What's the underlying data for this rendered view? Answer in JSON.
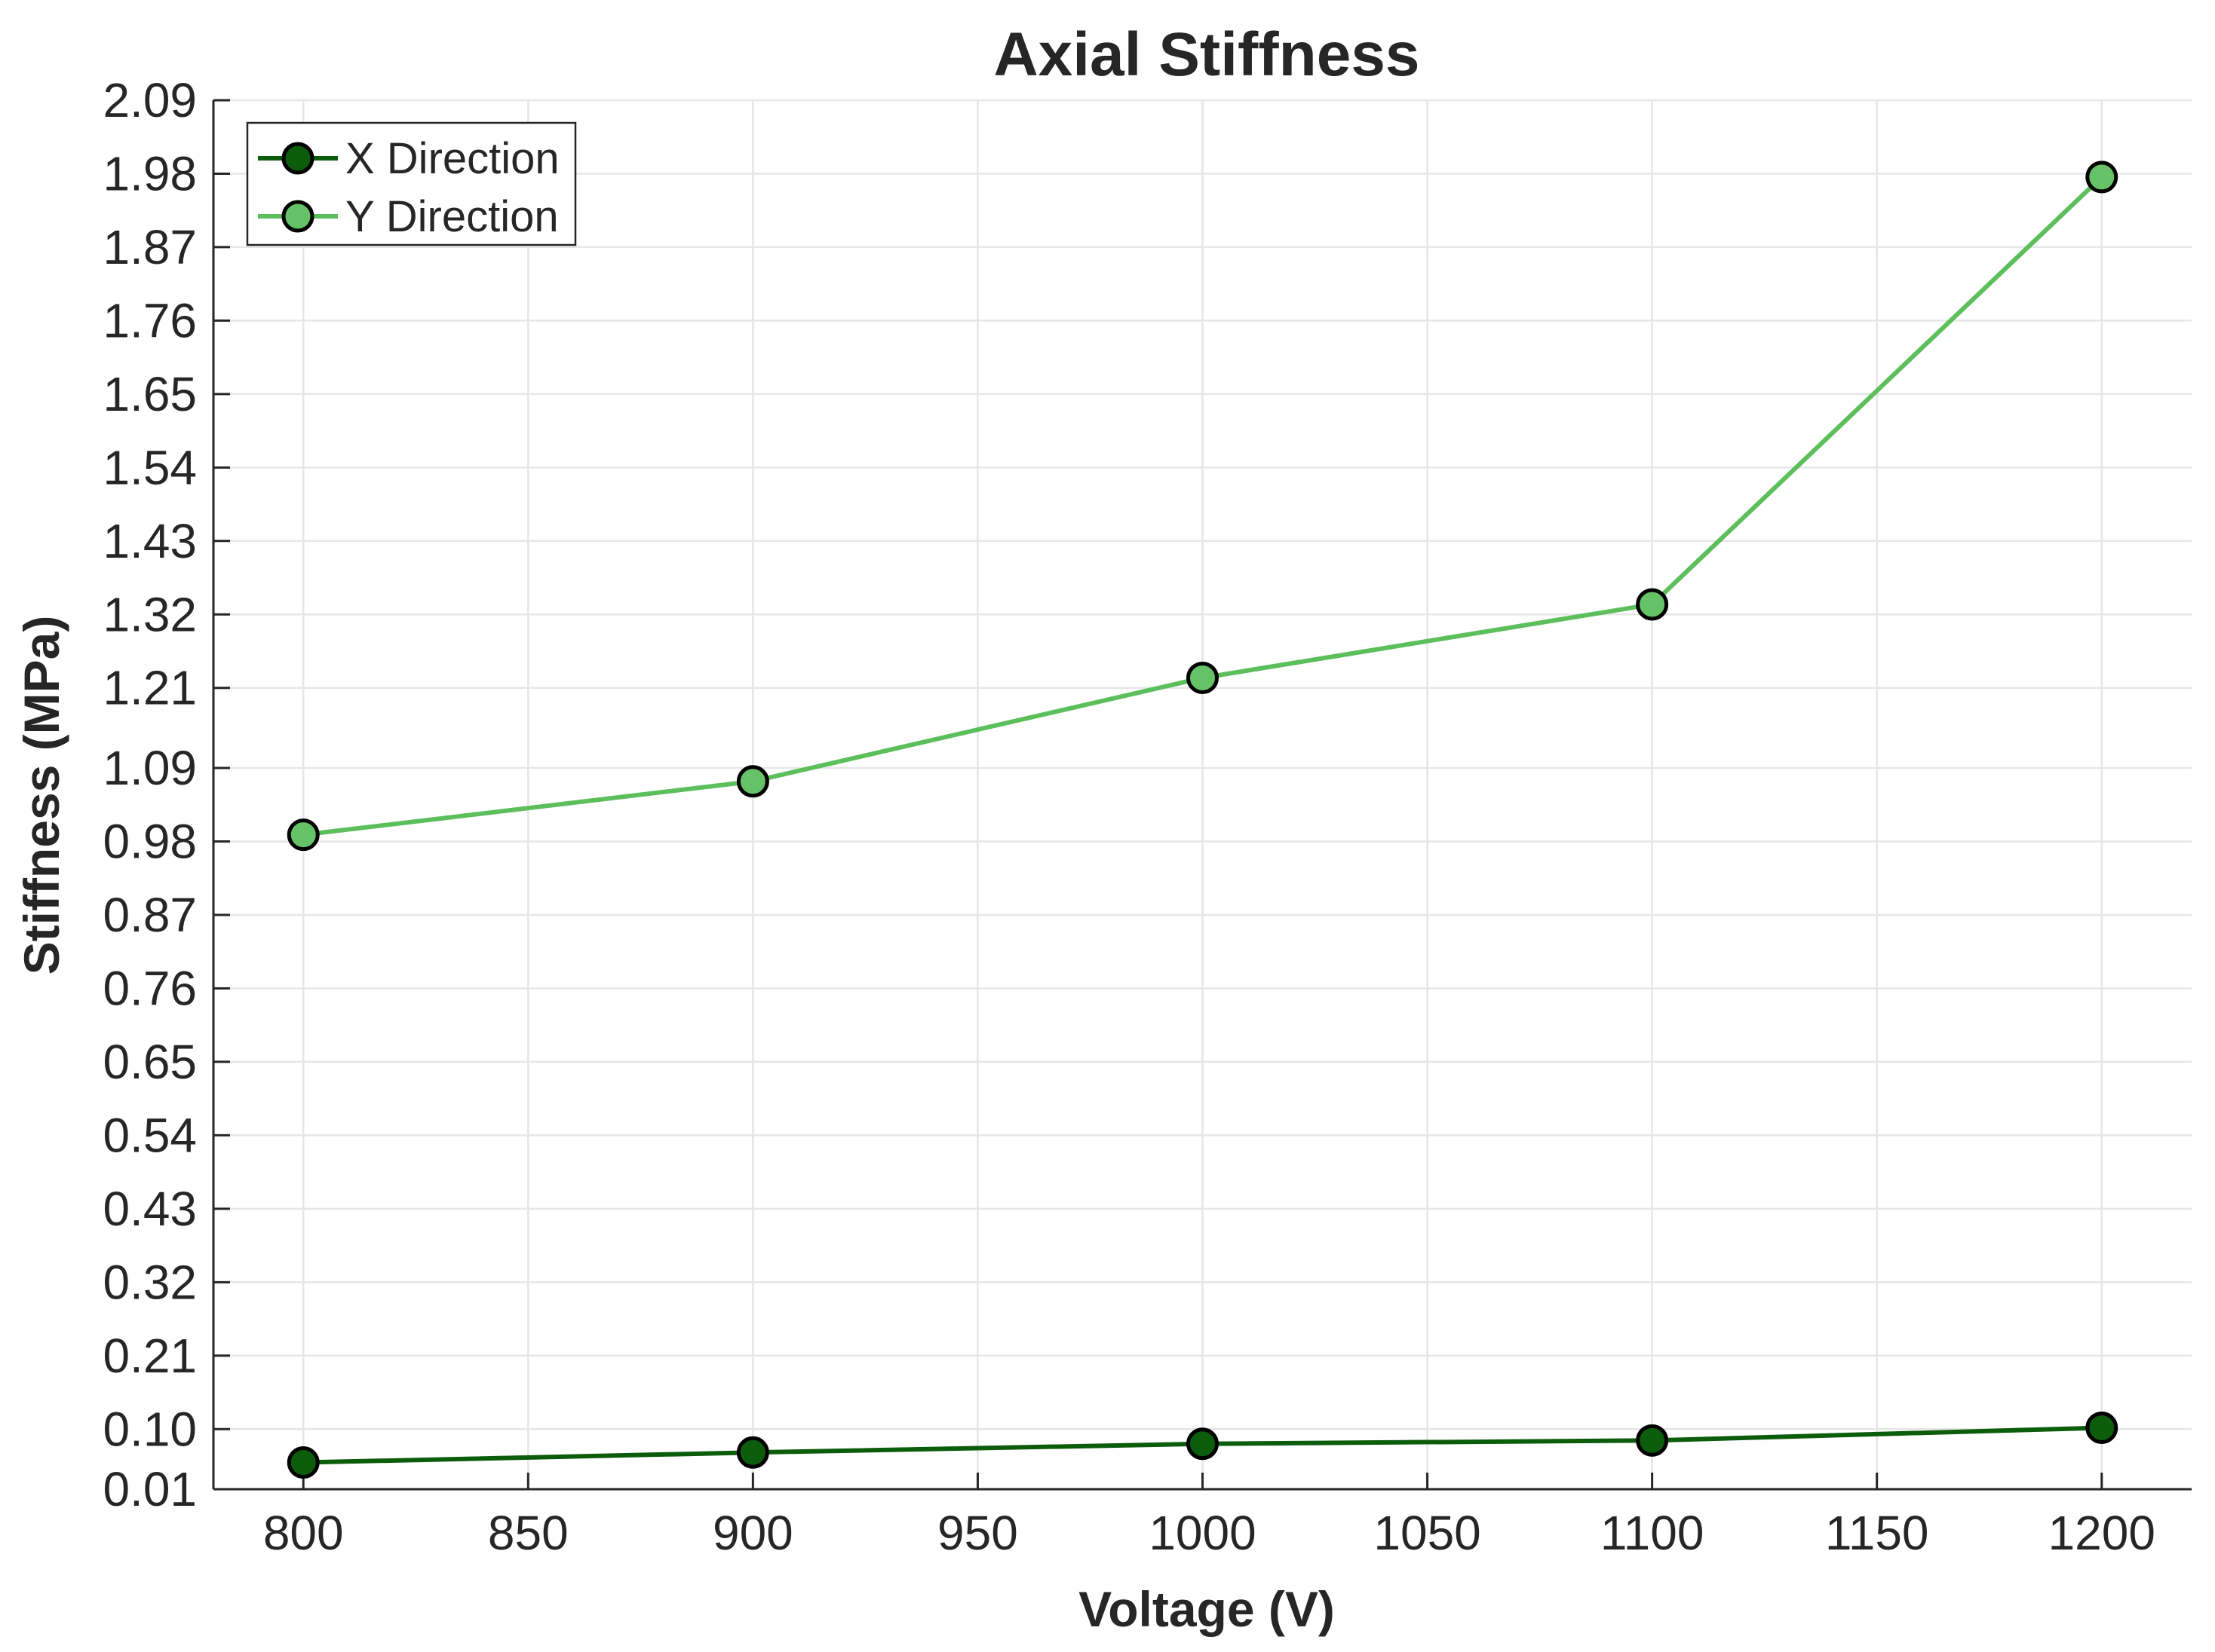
{
  "chart_data": {
    "type": "line",
    "title": "Axial Stiffness",
    "xlabel": "Voltage (V)",
    "ylabel": "Stiffness (MPa)",
    "x": [
      800,
      900,
      1000,
      1100,
      1200
    ],
    "xlim": [
      780,
      1220
    ],
    "ylim": [
      0.01,
      2.09
    ],
    "xticks": [
      800,
      850,
      900,
      950,
      1000,
      1050,
      1100,
      1150,
      1200
    ],
    "xtick_labels": [
      "800",
      "850",
      "900",
      "950",
      "1000",
      "1050",
      "1100",
      "1150",
      "1200"
    ],
    "yticks": [
      0.01,
      0.1,
      0.21,
      0.32,
      0.43,
      0.54,
      0.65,
      0.76,
      0.87,
      0.98,
      1.09,
      1.21,
      1.32,
      1.43,
      1.54,
      1.65,
      1.76,
      1.87,
      1.98,
      2.09
    ],
    "ytick_labels": [
      "0.01",
      "0.10",
      "0.21",
      "0.32",
      "0.43",
      "0.54",
      "0.65",
      "0.76",
      "0.87",
      "0.98",
      "1.09",
      "1.21",
      "1.32",
      "1.43",
      "1.54",
      "1.65",
      "1.76",
      "1.87",
      "1.98",
      "2.09"
    ],
    "grid": true,
    "legend_position": "top-left",
    "series": [
      {
        "name": "X Direction",
        "values": [
          0.05,
          0.065,
          0.078,
          0.083,
          0.102
        ],
        "color": "#0b5c0b",
        "marker_color": "#0b5c0b"
      },
      {
        "name": "Y Direction",
        "values": [
          0.99,
          1.07,
          1.225,
          1.335,
          1.975
        ],
        "color": "#5cbf5c",
        "marker_color": "#66c266"
      }
    ]
  }
}
